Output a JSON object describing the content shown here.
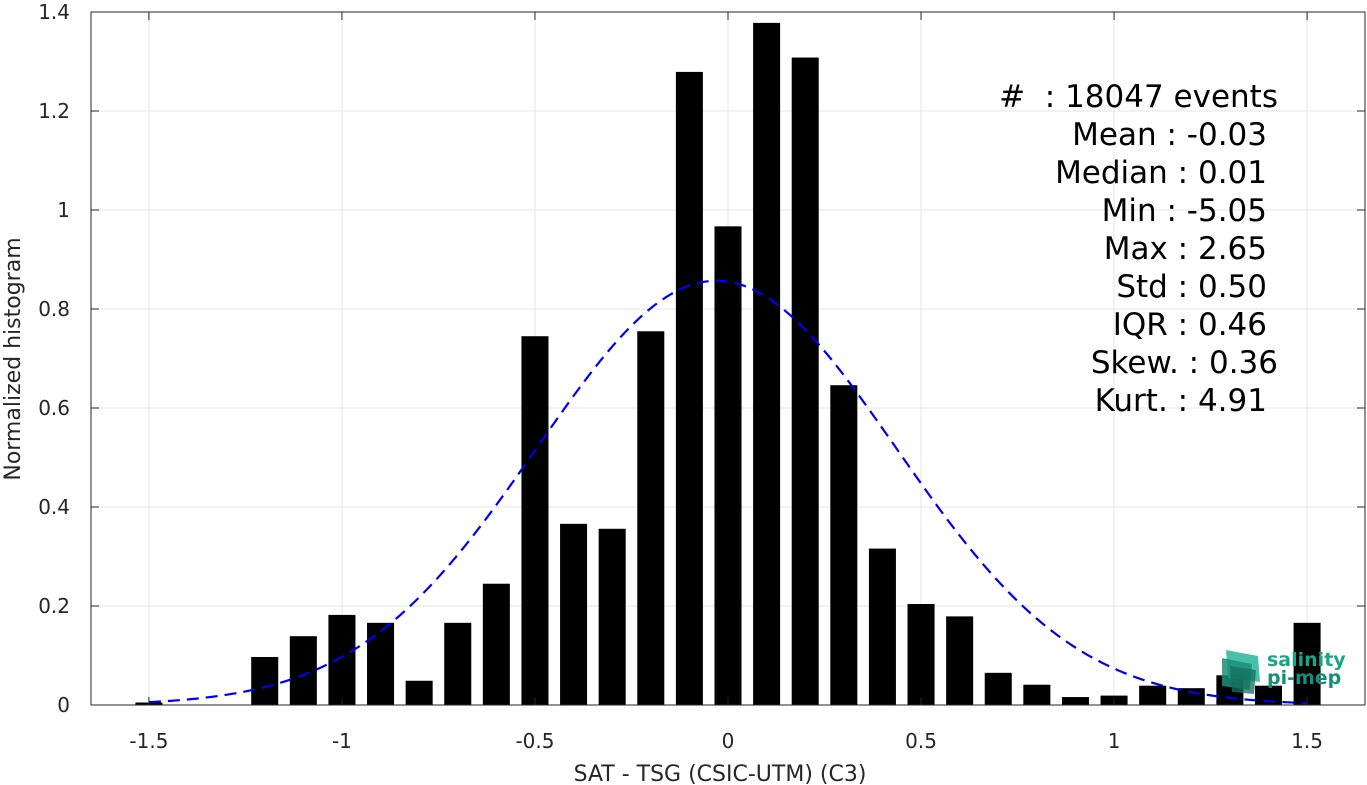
{
  "chart_data": {
    "type": "bar",
    "xlabel": "SAT - TSG (CSIC-UTM) (C3)",
    "ylabel": "Normalized histogram",
    "xlim": [
      -1.65,
      1.65
    ],
    "ylim": [
      0,
      1.4
    ],
    "xticks": [
      -1.5,
      -1,
      -0.5,
      0,
      0.5,
      1,
      1.5
    ],
    "xtick_labels": [
      "-1.5",
      "-1",
      "-0.5",
      "0",
      "0.5",
      "1",
      "1.5"
    ],
    "yticks": [
      0,
      0.2,
      0.4,
      0.6,
      0.8,
      1,
      1.2,
      1.4
    ],
    "ytick_labels": [
      "0",
      "0.2",
      "0.4",
      "0.6",
      "0.8",
      "1",
      "1.2",
      "1.4"
    ],
    "grid": true,
    "bar_width": 0.07,
    "bar_color": "#000000",
    "bins": [
      -1.5,
      -1.2,
      -1.1,
      -1.0,
      -0.9,
      -0.8,
      -0.7,
      -0.6,
      -0.5,
      -0.4,
      -0.3,
      -0.2,
      -0.1,
      0.0,
      0.1,
      0.2,
      0.3,
      0.4,
      0.5,
      0.6,
      0.7,
      0.8,
      0.9,
      1.0,
      1.1,
      1.2,
      1.3,
      1.4,
      1.5
    ],
    "values": [
      0.005,
      0.097,
      0.139,
      0.182,
      0.166,
      0.049,
      0.166,
      0.245,
      0.745,
      0.366,
      0.356,
      0.755,
      1.279,
      0.967,
      1.378,
      1.308,
      0.646,
      0.316,
      0.204,
      0.179,
      0.065,
      0.041,
      0.016,
      0.019,
      0.039,
      0.034,
      0.06,
      0.039,
      0.166
    ],
    "fit": {
      "type": "normal",
      "mean": -0.03,
      "std": 0.465,
      "peak": 0.857,
      "color": "#0000ee",
      "style": "dashed"
    },
    "stats": [
      "#  : 18047 events",
      "Mean : -0.03",
      "Median : 0.01",
      "Min : -5.05",
      "Max : 2.65",
      "Std : 0.50",
      "IQR : 0.46",
      "Skew. : 0.36",
      "Kurt. : 4.91"
    ],
    "stats_align": [
      "right",
      "right",
      "right",
      "right",
      "right",
      "right",
      "right",
      "right",
      "right"
    ]
  },
  "logo": {
    "line1": "salinity",
    "line2": "pi-mep",
    "color": "#1aa58a"
  }
}
